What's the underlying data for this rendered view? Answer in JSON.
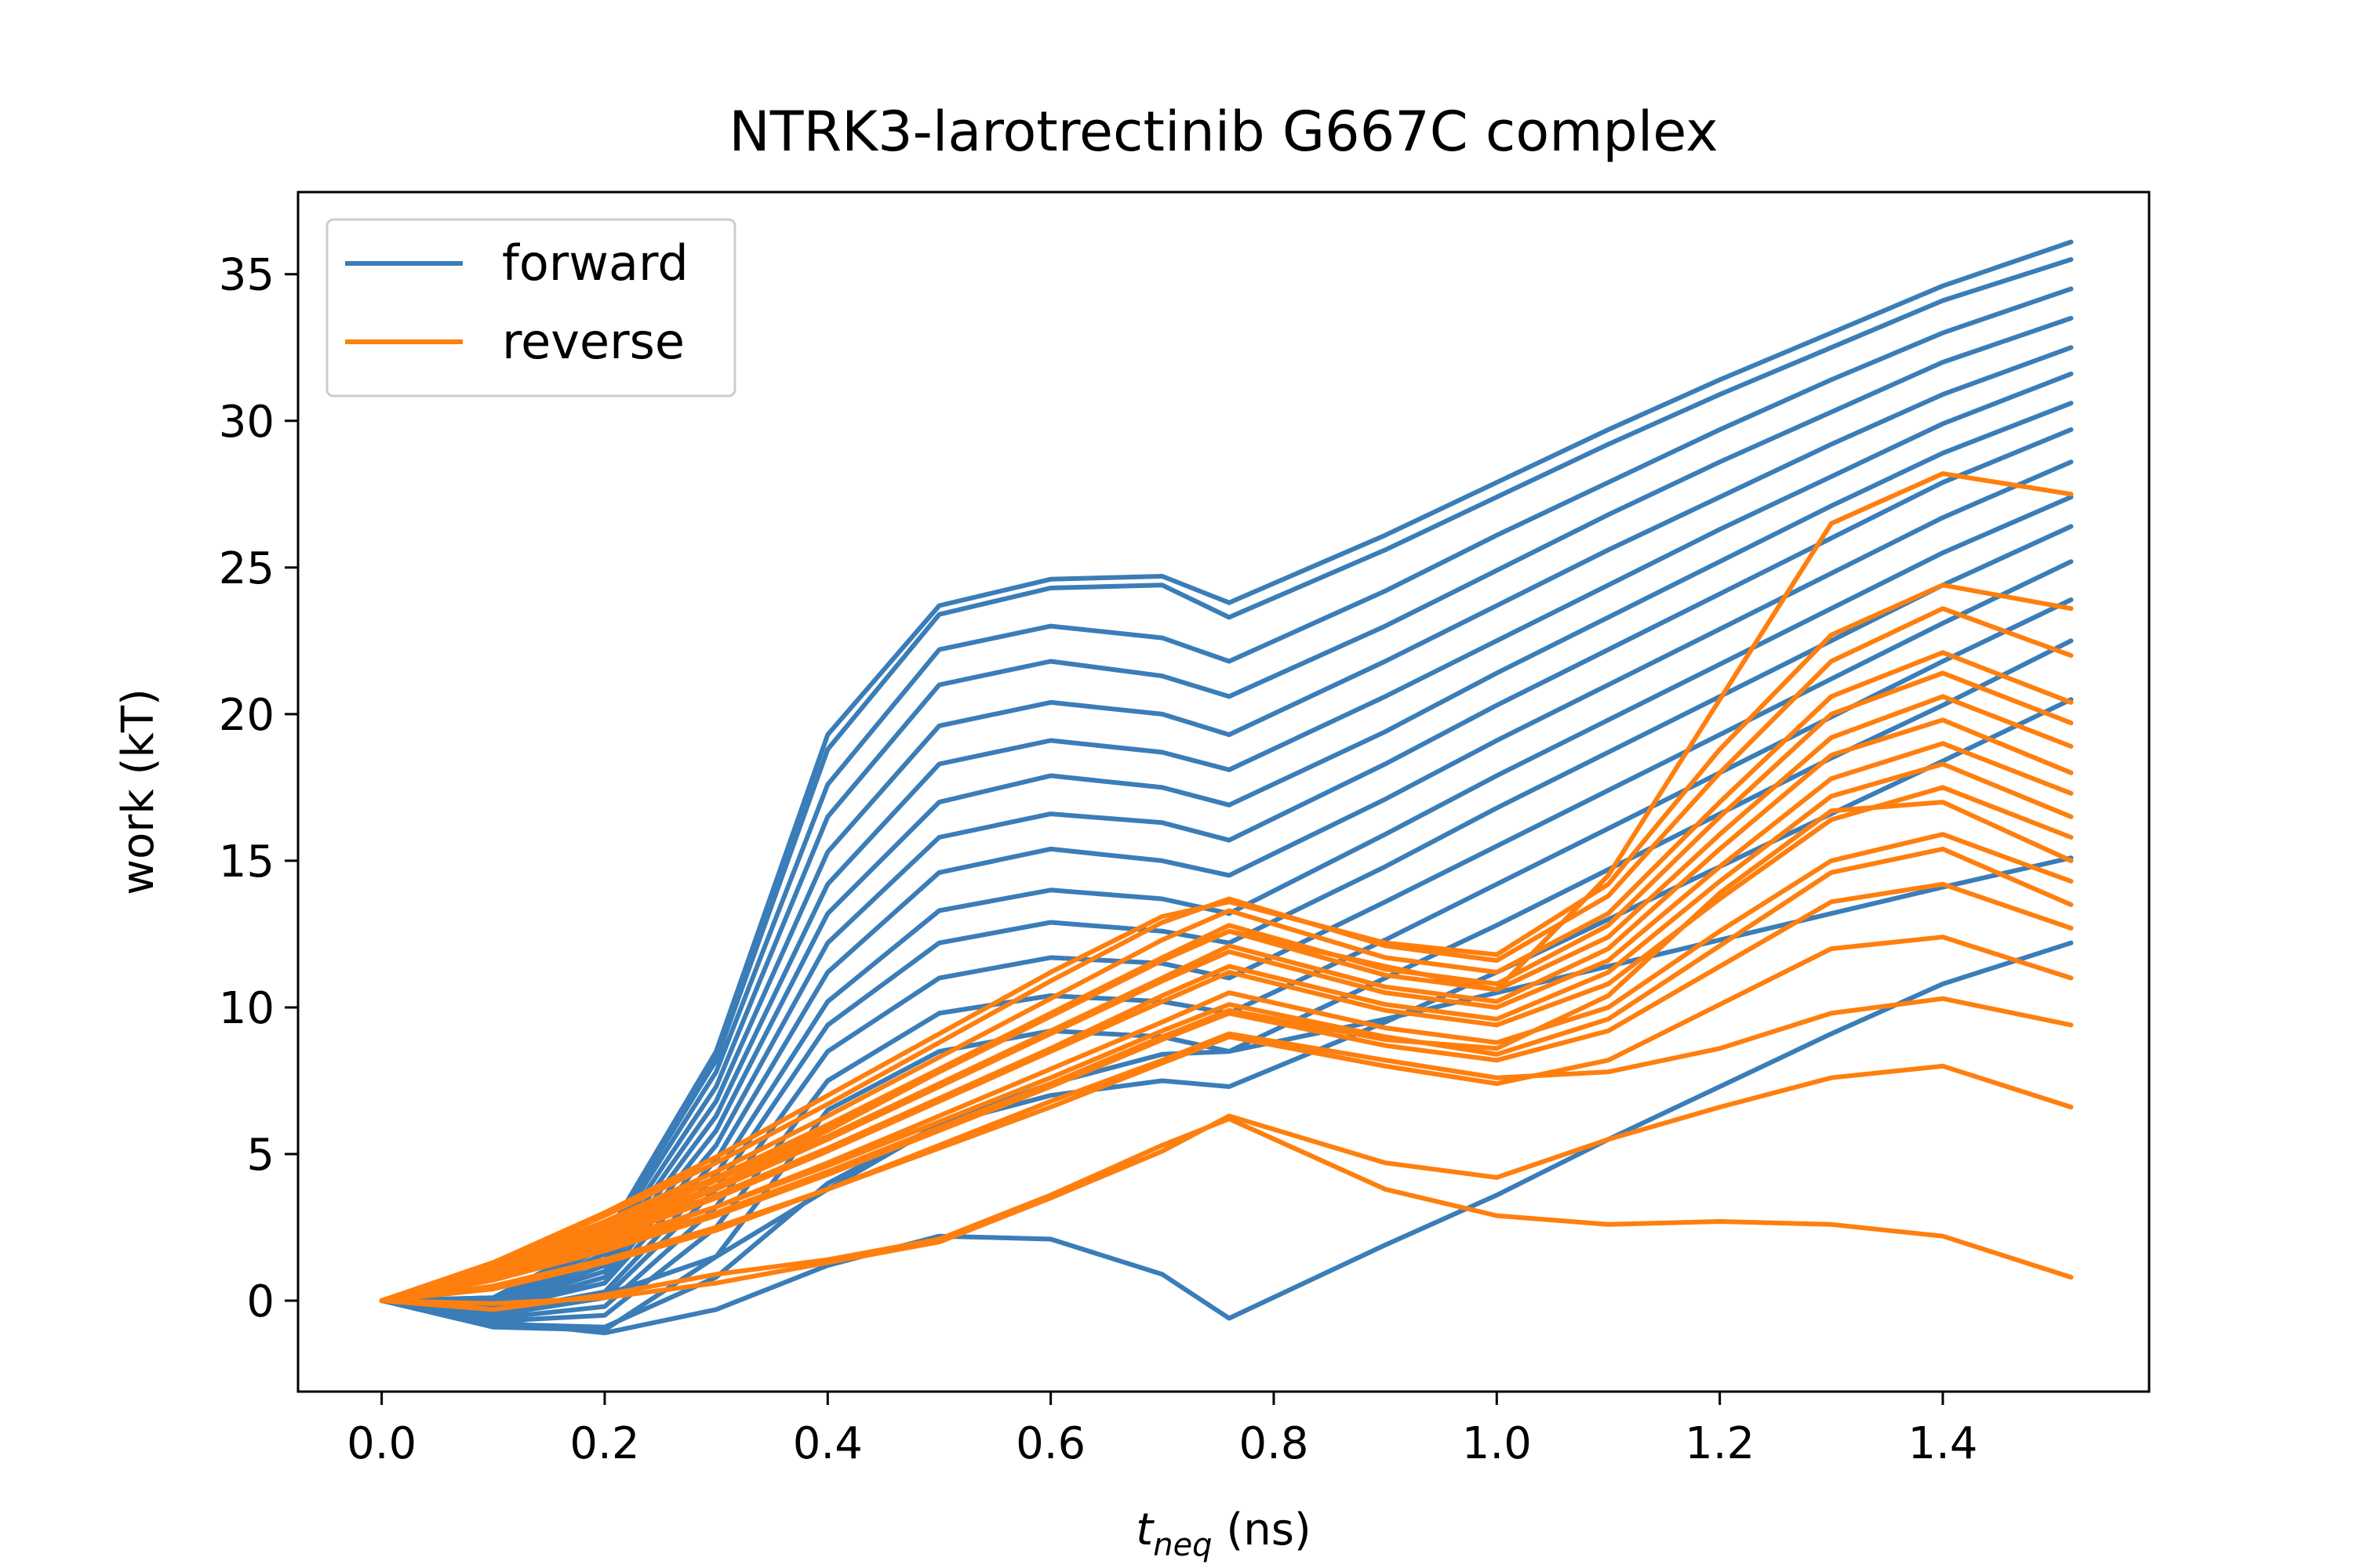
{
  "chart_data": {
    "type": "line",
    "title": "NTRK3-larotrectinib G667C complex",
    "xlabel_main": "t",
    "xlabel_sub": "neq",
    "xlabel_rest": " (ns)",
    "ylabel": "work (kT)",
    "xlim": [
      -0.075,
      1.585
    ],
    "ylim": [
      -3.1,
      37.8
    ],
    "xticks": [
      0.0,
      0.2,
      0.4,
      0.6,
      0.8,
      1.0,
      1.2,
      1.4
    ],
    "xtick_labels": [
      "0.0",
      "0.2",
      "0.4",
      "0.6",
      "0.8",
      "1.0",
      "1.2",
      "1.4"
    ],
    "yticks": [
      0,
      5,
      10,
      15,
      20,
      25,
      30,
      35
    ],
    "ytick_labels": [
      "0",
      "5",
      "10",
      "15",
      "20",
      "25",
      "30",
      "35"
    ],
    "grid": false,
    "legend_position": "top-left",
    "colors": {
      "forward": "#3a7db8",
      "reverse": "#ff7f0e"
    },
    "x": [
      0.0,
      0.1,
      0.2,
      0.3,
      0.4,
      0.5,
      0.6,
      0.7,
      0.76,
      0.9,
      1.0,
      1.1,
      1.2,
      1.3,
      1.4,
      1.515
    ],
    "series": [
      {
        "name": "forward",
        "group": "forward",
        "values": [
          0,
          -0.8,
          -0.9,
          0.8,
          4.0,
          6.0,
          7.0,
          7.5,
          7.3,
          9.5,
          11.2,
          13.0,
          14.8,
          16.6,
          18.4,
          20.5
        ]
      },
      {
        "group": "forward",
        "values": [
          0,
          -0.9,
          -1.0,
          1.5,
          6.5,
          8.5,
          9.2,
          9.0,
          8.5,
          11.0,
          12.8,
          14.7,
          16.6,
          18.5,
          20.3,
          22.5
        ]
      },
      {
        "group": "forward",
        "values": [
          0,
          -0.7,
          -0.5,
          2.5,
          7.5,
          9.8,
          10.4,
          10.2,
          9.8,
          12.3,
          14.2,
          16.1,
          18.0,
          19.9,
          21.8,
          23.9
        ]
      },
      {
        "group": "forward",
        "values": [
          0,
          -0.6,
          -0.2,
          3.2,
          8.5,
          11.0,
          11.7,
          11.5,
          11.0,
          13.6,
          15.5,
          17.4,
          19.3,
          21.2,
          23.1,
          25.2
        ]
      },
      {
        "group": "forward",
        "values": [
          0,
          -0.5,
          0.1,
          3.8,
          9.4,
          12.2,
          12.9,
          12.6,
          12.2,
          14.8,
          16.8,
          18.7,
          20.6,
          22.5,
          24.4,
          26.4
        ]
      },
      {
        "group": "forward",
        "values": [
          0,
          -0.4,
          0.3,
          4.3,
          10.2,
          13.3,
          14.0,
          13.7,
          13.2,
          15.9,
          17.9,
          19.8,
          21.7,
          23.6,
          25.5,
          27.4
        ]
      },
      {
        "group": "forward",
        "values": [
          0,
          -0.3,
          0.6,
          4.8,
          11.2,
          14.6,
          15.4,
          15.0,
          14.5,
          17.1,
          19.1,
          21.0,
          22.9,
          24.8,
          26.7,
          28.6
        ]
      },
      {
        "group": "forward",
        "values": [
          0,
          -0.3,
          0.8,
          5.3,
          12.2,
          15.8,
          16.6,
          16.3,
          15.7,
          18.3,
          20.3,
          22.2,
          24.1,
          26.0,
          27.9,
          29.7
        ]
      },
      {
        "group": "forward",
        "values": [
          0,
          -0.2,
          1.0,
          5.8,
          13.2,
          17.0,
          17.9,
          17.5,
          16.9,
          19.4,
          21.4,
          23.3,
          25.2,
          27.1,
          28.9,
          30.6
        ]
      },
      {
        "group": "forward",
        "values": [
          0,
          -0.2,
          1.2,
          6.3,
          14.2,
          18.3,
          19.1,
          18.7,
          18.1,
          20.6,
          22.5,
          24.4,
          26.3,
          28.1,
          29.9,
          31.6
        ]
      },
      {
        "group": "forward",
        "values": [
          0,
          -0.1,
          1.4,
          6.8,
          15.3,
          19.6,
          20.4,
          20.0,
          19.3,
          21.8,
          23.7,
          25.6,
          27.4,
          29.2,
          30.9,
          32.5
        ]
      },
      {
        "group": "forward",
        "values": [
          0,
          -0.1,
          1.6,
          7.3,
          16.5,
          21.0,
          21.8,
          21.3,
          20.6,
          23.0,
          24.9,
          26.8,
          28.6,
          30.3,
          32.0,
          33.5
        ]
      },
      {
        "group": "forward",
        "values": [
          0,
          0.0,
          1.8,
          7.8,
          17.6,
          22.2,
          23.0,
          22.6,
          21.8,
          24.2,
          26.1,
          27.9,
          29.7,
          31.4,
          33.0,
          34.5
        ]
      },
      {
        "group": "forward",
        "values": [
          0,
          0.1,
          2.0,
          8.2,
          18.8,
          23.4,
          24.3,
          24.4,
          23.3,
          25.6,
          27.4,
          29.2,
          30.9,
          32.5,
          34.1,
          35.5
        ]
      },
      {
        "group": "forward",
        "values": [
          0,
          0.1,
          2.1,
          8.5,
          19.3,
          23.7,
          24.6,
          24.7,
          23.8,
          26.1,
          27.9,
          29.7,
          31.4,
          33.0,
          34.6,
          36.1
        ]
      },
      {
        "group": "forward",
        "values": [
          0,
          -0.4,
          0.2,
          1.5,
          3.8,
          6.0,
          7.4,
          8.4,
          8.5,
          9.6,
          10.5,
          11.4,
          12.3,
          13.2,
          14.1,
          15.1
        ]
      },
      {
        "group": "forward",
        "values": [
          0,
          -0.7,
          -1.1,
          -0.3,
          1.2,
          2.2,
          2.1,
          0.9,
          -0.6,
          1.9,
          3.6,
          5.5,
          7.3,
          9.1,
          10.8,
          12.2
        ]
      },
      {
        "group": "reverse",
        "values": [
          0,
          0.5,
          1.4,
          2.5,
          3.8,
          5.2,
          6.6,
          8.1,
          9.0,
          8.0,
          7.4,
          8.2,
          10.1,
          12.0,
          12.4,
          11.0
        ]
      },
      {
        "group": "reverse",
        "values": [
          0,
          0.7,
          1.7,
          2.9,
          4.3,
          5.8,
          7.3,
          8.9,
          9.8,
          8.7,
          8.2,
          9.2,
          11.4,
          13.6,
          14.2,
          12.7
        ]
      },
      {
        "group": "reverse",
        "values": [
          0,
          0.8,
          1.9,
          3.2,
          4.7,
          6.3,
          7.9,
          9.5,
          10.5,
          9.3,
          8.8,
          10.0,
          12.6,
          15.0,
          15.9,
          14.3
        ]
      },
      {
        "group": "reverse",
        "values": [
          0,
          0.9,
          2.1,
          3.5,
          5.1,
          6.8,
          8.5,
          10.2,
          11.2,
          9.9,
          9.4,
          10.8,
          13.7,
          16.4,
          17.5,
          15.8
        ]
      },
      {
        "group": "reverse",
        "values": [
          0,
          1.0,
          2.3,
          3.8,
          5.5,
          7.3,
          9.1,
          10.9,
          11.9,
          10.5,
          10.0,
          11.6,
          14.8,
          17.8,
          19.0,
          17.3
        ]
      },
      {
        "group": "reverse",
        "values": [
          0,
          1.1,
          2.5,
          4.1,
          5.9,
          7.8,
          9.7,
          11.6,
          12.6,
          11.1,
          10.6,
          12.4,
          15.9,
          19.2,
          20.6,
          18.9
        ]
      },
      {
        "group": "reverse",
        "values": [
          0,
          1.2,
          2.7,
          4.4,
          6.3,
          8.3,
          10.3,
          12.3,
          13.3,
          11.7,
          11.2,
          13.2,
          17.0,
          20.6,
          22.1,
          20.4
        ]
      },
      {
        "group": "reverse",
        "values": [
          0,
          1.3,
          2.9,
          4.7,
          6.7,
          8.8,
          10.9,
          12.9,
          13.7,
          12.1,
          11.6,
          13.8,
          18.0,
          21.8,
          23.6,
          22.0
        ]
      },
      {
        "group": "reverse",
        "values": [
          0,
          1.3,
          3.0,
          4.9,
          7.0,
          9.1,
          11.2,
          13.1,
          13.6,
          12.2,
          11.8,
          14.2,
          18.8,
          22.7,
          24.4,
          23.6
        ]
      },
      {
        "group": "reverse",
        "values": [
          0,
          0.9,
          2.0,
          3.2,
          4.6,
          6.1,
          7.6,
          9.2,
          10.1,
          9.0,
          8.4,
          9.6,
          12.1,
          14.6,
          15.4,
          13.5
        ]
      },
      {
        "group": "reverse",
        "values": [
          0,
          1.0,
          2.2,
          3.6,
          5.2,
          6.9,
          8.6,
          10.4,
          11.4,
          10.1,
          9.6,
          11.2,
          14.3,
          17.2,
          18.3,
          16.5
        ]
      },
      {
        "group": "reverse",
        "values": [
          0,
          1.2,
          2.6,
          4.2,
          6.0,
          7.9,
          9.8,
          11.7,
          12.8,
          11.3,
          10.8,
          12.8,
          16.5,
          20.0,
          21.4,
          19.7
        ]
      },
      {
        "group": "reverse",
        "values": [
          0,
          1.1,
          2.4,
          3.9,
          5.6,
          7.4,
          9.2,
          11.0,
          12.1,
          10.7,
          10.2,
          12.0,
          15.4,
          18.6,
          19.8,
          18.0
        ]
      },
      {
        "group": "reverse",
        "values": [
          0,
          0.8,
          1.8,
          3.0,
          4.4,
          5.9,
          7.4,
          9.0,
          9.9,
          8.9,
          8.6,
          10.4,
          13.9,
          16.7,
          17.0,
          15.0
        ]
      },
      {
        "group": "reverse",
        "values": [
          0,
          0.8,
          2.1,
          3.9,
          5.8,
          7.8,
          9.7,
          11.6,
          12.6,
          11.4,
          10.6,
          14.5,
          20.5,
          26.5,
          28.2,
          27.5
        ]
      },
      {
        "group": "reverse",
        "values": [
          0,
          0.4,
          1.3,
          2.4,
          3.8,
          5.3,
          6.8,
          8.2,
          9.1,
          8.2,
          7.6,
          7.8,
          8.6,
          9.8,
          10.3,
          9.4
        ]
      },
      {
        "group": "reverse",
        "values": [
          0,
          -0.1,
          0.1,
          0.6,
          1.3,
          2.0,
          3.5,
          5.1,
          6.3,
          4.7,
          4.2,
          5.5,
          6.6,
          7.6,
          8.0,
          6.6
        ]
      },
      {
        "group": "reverse",
        "values": [
          0,
          -0.3,
          0.2,
          0.9,
          1.4,
          2.1,
          3.6,
          5.3,
          6.2,
          3.8,
          2.9,
          2.6,
          2.7,
          2.6,
          2.2,
          0.8
        ]
      }
    ]
  }
}
